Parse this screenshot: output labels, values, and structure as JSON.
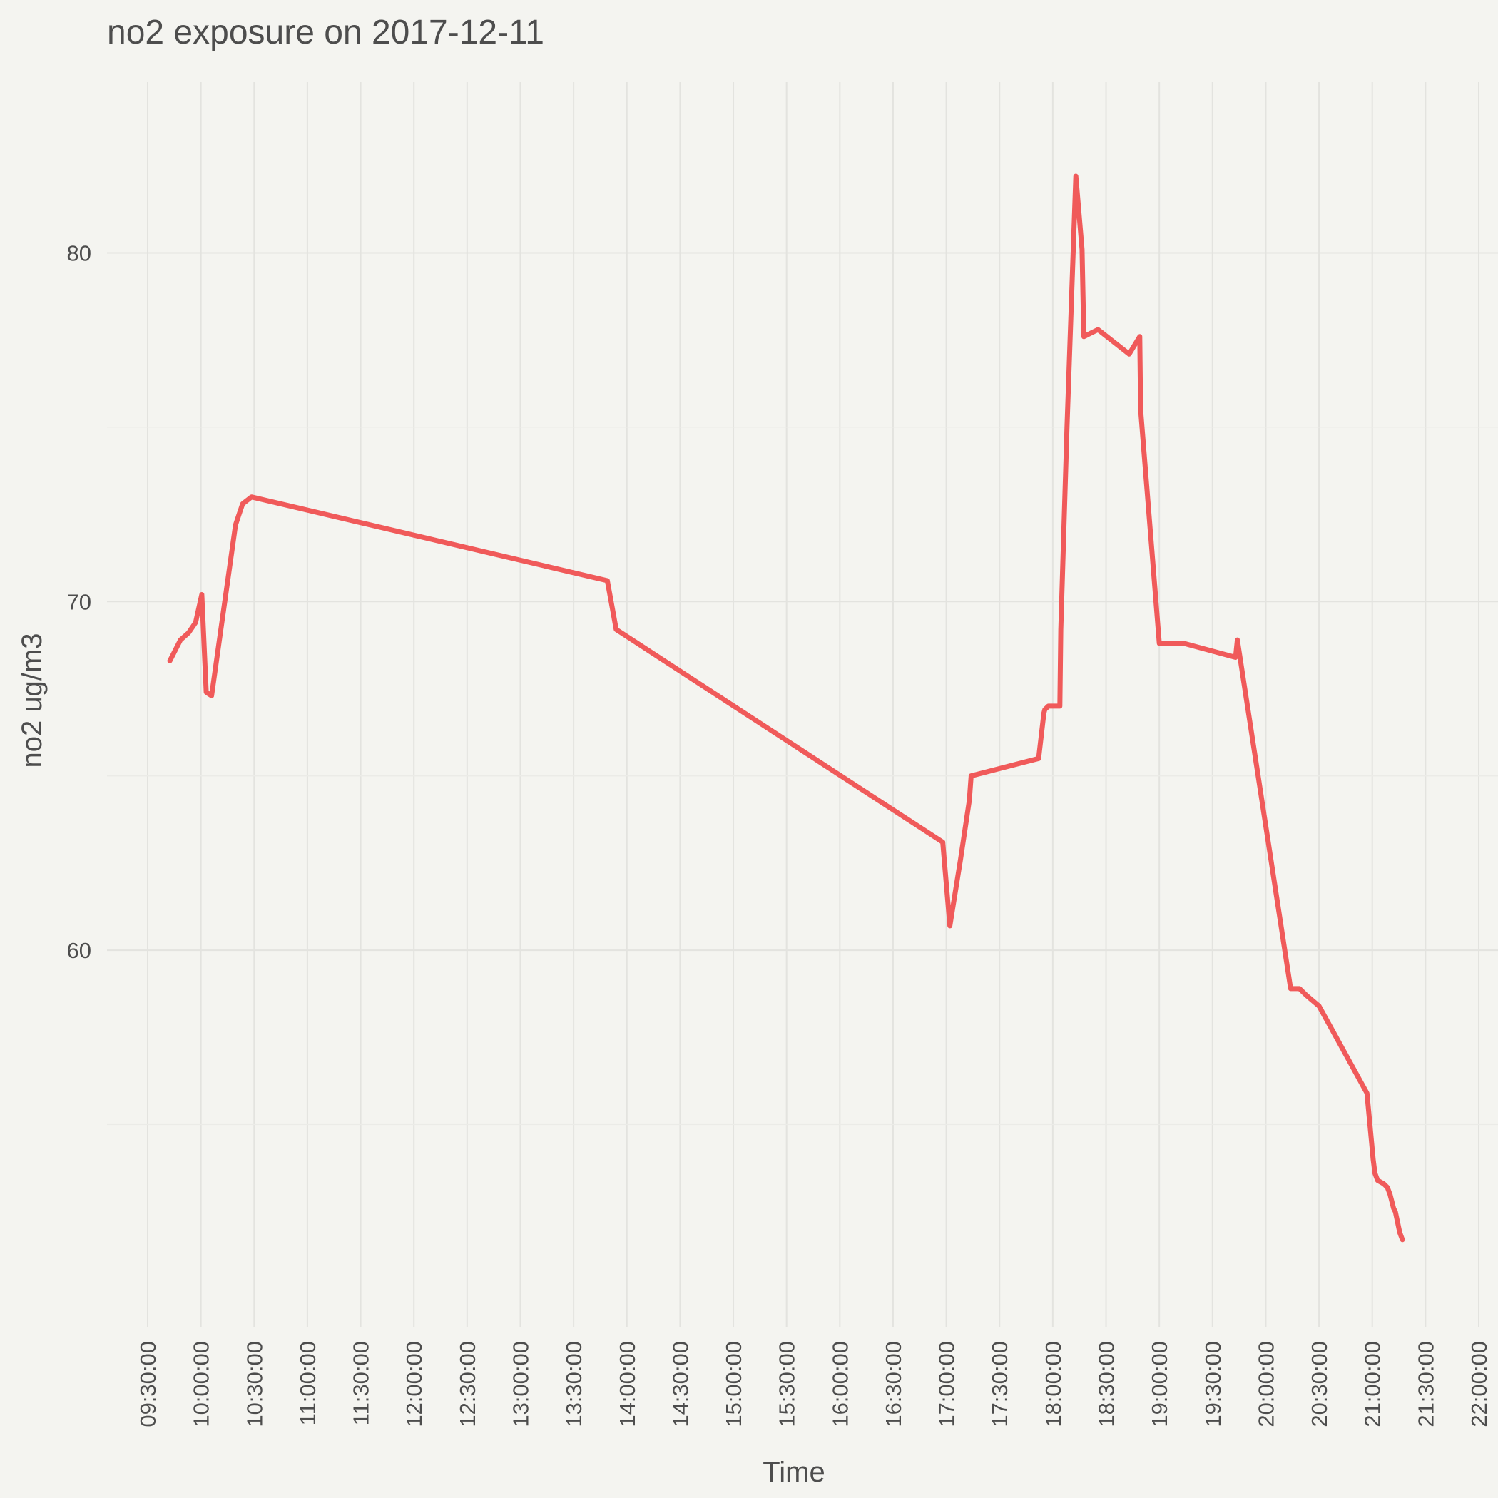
{
  "chart_data": {
    "type": "line",
    "title": "no2  exposure on  2017-12-11",
    "xlabel": "Time",
    "ylabel": "no2  ug/m3",
    "x_axis": {
      "type": "time",
      "range": [
        "09:30:00",
        "22:00:00"
      ],
      "ticks": [
        "09:30:00",
        "10:00:00",
        "10:30:00",
        "11:00:00",
        "11:30:00",
        "12:00:00",
        "12:30:00",
        "13:00:00",
        "13:30:00",
        "14:00:00",
        "14:30:00",
        "15:00:00",
        "15:30:00",
        "16:00:00",
        "16:30:00",
        "17:00:00",
        "17:30:00",
        "18:00:00",
        "18:30:00",
        "19:00:00",
        "19:30:00",
        "20:00:00",
        "20:30:00",
        "21:00:00",
        "21:30:00",
        "22:00:00"
      ]
    },
    "y_axis": {
      "range": [
        49.2,
        84.9
      ],
      "ticks": [
        60,
        70,
        80
      ]
    },
    "grid": true,
    "legend": "none",
    "series_color": "#f05a5a",
    "series": [
      {
        "x": [
          "09:42:30",
          "09:44:30",
          "09:48:30",
          "09:53:00",
          "09:57:00",
          "10:00:30",
          "10:03:00",
          "10:06:00",
          "10:19:30",
          "10:21:30",
          "10:23:30",
          "10:28:30",
          "13:49:00",
          "13:54:00",
          "16:58:00",
          "17:02:00",
          "17:08:00",
          "17:13:00",
          "17:14:00",
          "17:52:00",
          "17:55:00",
          "17:55:30",
          "17:57:30",
          "18:04:00",
          "18:04:30",
          "18:08:00",
          "18:13:00",
          "18:16:30",
          "18:17:30",
          "18:25:30",
          "18:43:00",
          "18:49:00",
          "18:49:30",
          "19:00:00",
          "19:14:00",
          "19:43:00",
          "19:44:00",
          "20:14:00",
          "20:19:00",
          "20:23:00",
          "20:30:00",
          "20:57:00",
          "21:00:30",
          "21:01:30",
          "21:03:00",
          "21:06:30",
          "21:08:30",
          "21:10:00",
          "21:12:00",
          "21:13:00",
          "21:15:30",
          "21:17:00"
        ],
        "y": [
          68.3,
          68.5,
          68.9,
          69.1,
          69.4,
          70.2,
          67.4,
          67.3,
          72.2,
          72.5,
          72.8,
          73.0,
          70.6,
          69.2,
          63.1,
          60.7,
          62.6,
          64.3,
          65.0,
          65.5,
          66.8,
          66.9,
          67.0,
          67.0,
          69.2,
          75.0,
          82.2,
          80.1,
          77.6,
          77.8,
          77.1,
          77.6,
          75.5,
          68.8,
          68.8,
          68.4,
          68.9,
          58.9,
          58.9,
          58.7,
          58.4,
          55.9,
          54.0,
          53.6,
          53.4,
          53.3,
          53.2,
          53.0,
          52.6,
          52.5,
          51.9,
          51.7
        ]
      }
    ]
  }
}
